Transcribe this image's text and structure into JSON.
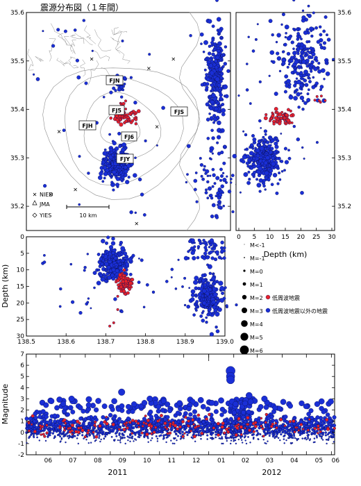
{
  "title": "震源分布図（１年間）",
  "colors": {
    "red": "#e8222a",
    "blue": "#1a2fd6",
    "edge": "#0a0f55",
    "map_line": "#8d8d8d"
  },
  "map": {
    "lat_ticks": [
      "35.6",
      "35.5",
      "35.4",
      "35.3",
      "35.2"
    ],
    "stations": [
      "FJN",
      "FJ5",
      "FJH",
      "FJ6",
      "FJY",
      "FJS"
    ],
    "legend": [
      "NIED",
      "JMA",
      "YIES"
    ],
    "scale_label": "10 km"
  },
  "depth_panel": {
    "xlabel": "Depth (km)",
    "ticks": [
      "0",
      "5",
      "10",
      "15",
      "20",
      "25",
      "30"
    ],
    "lat_ticks": [
      "35.6",
      "35.5",
      "35.4",
      "35.3",
      "35.2"
    ]
  },
  "cross_section": {
    "ylabel": "Depth (km)",
    "yticks": [
      "0",
      "5",
      "10",
      "15",
      "20",
      "25",
      "30"
    ],
    "xticks": [
      "138.5",
      "138.6",
      "138.7",
      "138.8",
      "138.9",
      "139.0"
    ]
  },
  "legend": {
    "mags": [
      "M<-1",
      "M=-1",
      "M=0",
      "M=1",
      "M=2",
      "M=3",
      "M=4",
      "M=5",
      "M=6"
    ],
    "low_freq": "低周波地震",
    "other": "低周波地震以外の地震"
  },
  "timeline": {
    "ylabel": "Magnitude",
    "yticks": [
      "7",
      "6",
      "5",
      "4",
      "3",
      "2",
      "1",
      "0",
      "-1",
      "-2"
    ],
    "months": [
      "06",
      "07",
      "08",
      "09",
      "10",
      "11",
      "12",
      "01",
      "02",
      "03",
      "04",
      "05",
      "06"
    ],
    "years": [
      "2011",
      "2012"
    ]
  },
  "chart_data": [
    {
      "type": "scatter",
      "title": "震源分布図（１年間）",
      "xlabel": "",
      "ylabel": "",
      "xlim": [
        138.5,
        139.0
      ],
      "ylim": [
        35.15,
        35.6
      ],
      "series": [
        {
          "name": "低周波地震",
          "clusters": [
            {
              "x": 138.74,
              "y": 35.385,
              "n": 60
            },
            {
              "x": 138.73,
              "y": 35.4,
              "n": 10
            }
          ]
        },
        {
          "name": "低周波地震以外の地震",
          "clusters": [
            {
              "x": 138.72,
              "y": 35.29,
              "n": 300
            },
            {
              "x": 138.96,
              "y": 35.47,
              "n": 260
            },
            {
              "x": 138.73,
              "y": 35.44,
              "n": 25
            },
            {
              "x": 138.96,
              "y": 35.25,
              "n": 60
            }
          ]
        }
      ]
    },
    {
      "type": "scatter",
      "xlabel": "Depth (km)",
      "xlim": [
        0,
        30
      ],
      "ylim": [
        35.15,
        35.6
      ],
      "series": [
        {
          "name": "低周波地震",
          "clusters": [
            {
              "x": 14,
              "y": 35.385,
              "n": 60
            }
          ]
        },
        {
          "name": "低周波地震以外の地震",
          "clusters": [
            {
              "x": 8,
              "y": 35.3,
              "n": 300
            },
            {
              "x": 20,
              "y": 35.5,
              "n": 200
            }
          ]
        }
      ]
    },
    {
      "type": "scatter",
      "ylabel": "Depth (km)",
      "xlim": [
        138.5,
        139.0
      ],
      "ylim": [
        30,
        0
      ],
      "series": [
        {
          "name": "低周波地震",
          "clusters": [
            {
              "x": 138.745,
              "y": 14,
              "n": 70
            }
          ],
          "deep_points": [
            [
              138.73,
              22
            ],
            [
              138.72,
              26
            ],
            [
              138.71,
              27
            ]
          ]
        },
        {
          "name": "低周波地震以外の地震",
          "clusters": [
            {
              "x": 138.72,
              "y": 8,
              "n": 250
            },
            {
              "x": 138.96,
              "y": 18,
              "n": 220
            },
            {
              "x": 138.96,
              "y": 5,
              "n": 60
            }
          ]
        }
      ]
    },
    {
      "type": "scatter",
      "xlabel": "",
      "ylabel": "Magnitude",
      "ylim": [
        -2,
        7
      ],
      "x_range": [
        "2011-05-20",
        "2012-06-05"
      ],
      "series": [
        {
          "name": "低周波地震",
          "typical_magnitude_range": [
            -0.5,
            1.5
          ]
        },
        {
          "name": "低周波地震以外の地震",
          "typical_magnitude_range": [
            -1,
            2.5
          ],
          "peak_events": [
            [
              "2012-01-28",
              5.5
            ],
            [
              "2012-01-28",
              5.0
            ],
            [
              "2012-01-28",
              4.7
            ],
            [
              "2011-09-15",
              3.6
            ],
            [
              "2011-07-15",
              3.0
            ],
            [
              "2011-06-20",
              2.8
            ],
            [
              "2011-10-20",
              3.0
            ],
            [
              "2012-02-20",
              3.3
            ],
            [
              "2012-03-10",
              3.0
            ]
          ]
        }
      ]
    }
  ]
}
